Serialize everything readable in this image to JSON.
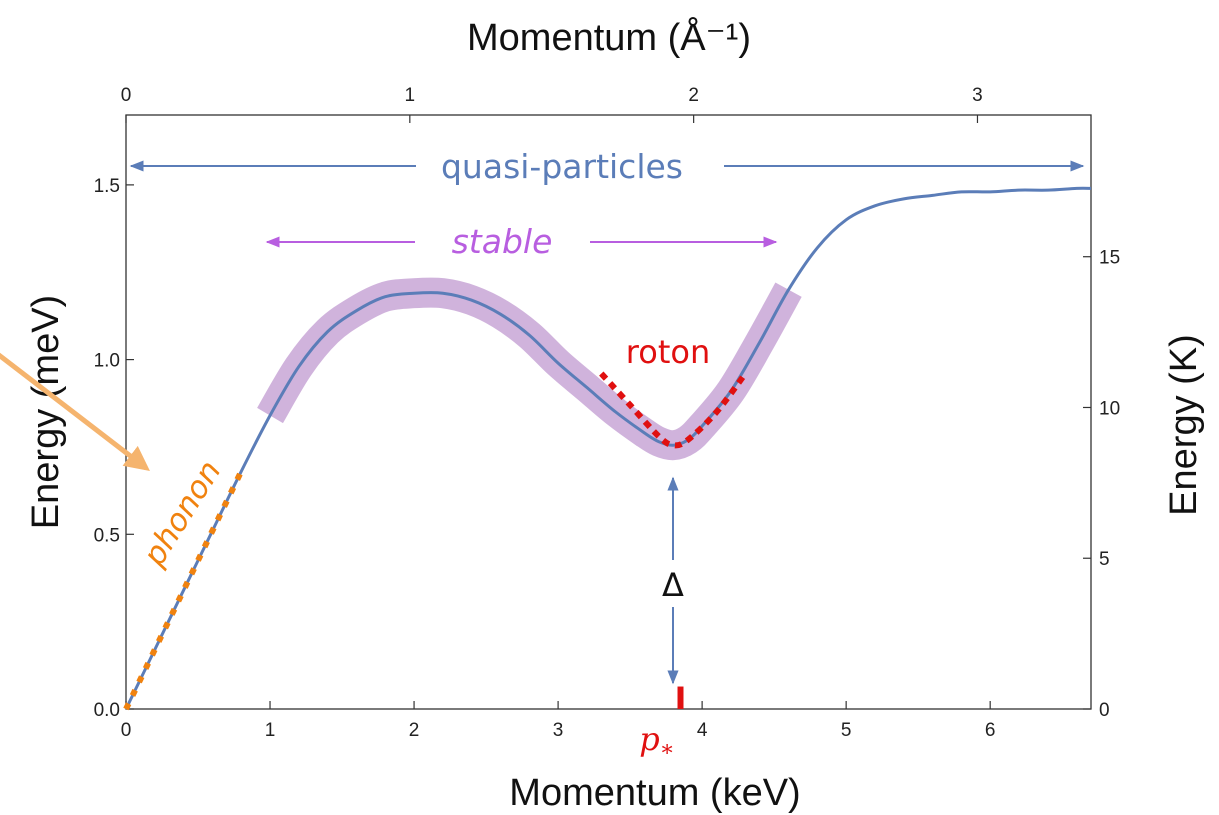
{
  "chart_data": {
    "type": "line",
    "x_axis": {
      "label": "Momentum (keV)",
      "range": [
        0,
        6.7
      ],
      "ticks": [
        0,
        1,
        2,
        3,
        4,
        5,
        6
      ],
      "tick_labels": [
        "0",
        "1",
        "2",
        "3",
        "4",
        "5",
        "6"
      ]
    },
    "x2_axis": {
      "label": "Momentum (Å⁻¹)",
      "range": [
        0,
        3.4
      ],
      "ticks": [
        0,
        1,
        2,
        3
      ],
      "tick_labels": [
        "0",
        "1",
        "2",
        "3"
      ]
    },
    "y_axis": {
      "label": "Energy (meV)",
      "range": [
        0,
        1.7
      ],
      "ticks": [
        0,
        0.5,
        1.0,
        1.5
      ],
      "tick_labels": [
        "0.0",
        "0.5",
        "1.0",
        "1.5"
      ]
    },
    "y2_axis": {
      "label": "Energy (K)",
      "range": [
        0,
        19.7
      ],
      "ticks": [
        0,
        5,
        10,
        15
      ],
      "tick_labels": [
        "0",
        "5",
        "10",
        "15"
      ]
    },
    "grid": false,
    "series": [
      {
        "color": "#5b7db8",
        "x": [
          0,
          0.2,
          0.4,
          0.6,
          0.8,
          1.0,
          1.2,
          1.4,
          1.6,
          1.8,
          2.0,
          2.2,
          2.4,
          2.6,
          2.8,
          3.0,
          3.2,
          3.4,
          3.6,
          3.7,
          3.8,
          3.9,
          4.0,
          4.2,
          4.4,
          4.6,
          4.8,
          5.0,
          5.2,
          5.4,
          5.6,
          5.8,
          6.0,
          6.2,
          6.4,
          6.6,
          6.7
        ],
        "y": [
          0,
          0.17,
          0.34,
          0.51,
          0.68,
          0.84,
          0.98,
          1.08,
          1.14,
          1.18,
          1.19,
          1.19,
          1.17,
          1.13,
          1.07,
          0.99,
          0.92,
          0.85,
          0.79,
          0.765,
          0.755,
          0.77,
          0.81,
          0.91,
          1.05,
          1.2,
          1.32,
          1.4,
          1.44,
          1.46,
          1.47,
          1.48,
          1.48,
          1.485,
          1.485,
          1.49,
          1.49
        ]
      }
    ],
    "overlays": [
      {
        "kind": "dotted-fit",
        "color": "#f0820f",
        "x": [
          0,
          0.8
        ],
        "y": [
          0,
          0.68
        ]
      },
      {
        "kind": "dotted-fit",
        "color": "#e01010",
        "x": [
          3.3,
          3.5,
          3.7,
          3.8,
          3.9,
          4.1,
          4.3
        ],
        "y": [
          0.96,
          0.87,
          0.78,
          0.755,
          0.77,
          0.85,
          0.96
        ]
      },
      {
        "kind": "band",
        "color": "#c09ad0",
        "x_range": [
          1.0,
          4.6
        ]
      },
      {
        "kind": "marker",
        "color": "#e01010",
        "x": 3.85,
        "y_range": [
          0,
          0.05
        ]
      }
    ],
    "annotations": {
      "quasi_particles": "quasi-particles",
      "stable": "stable",
      "roton": "roton",
      "phonon": "phonon",
      "gap": "Δ",
      "p_star": "p",
      "p_star_sub": "∗"
    },
    "colors": {
      "curve": "#5b7db8",
      "quasi_arrow": "#5b7db8",
      "stable_arrow": "#b85ee0",
      "roton": "#e01010",
      "phonon": "#f0820f",
      "band": "#c09ad0",
      "external_arrow": "#f5b46e"
    }
  }
}
